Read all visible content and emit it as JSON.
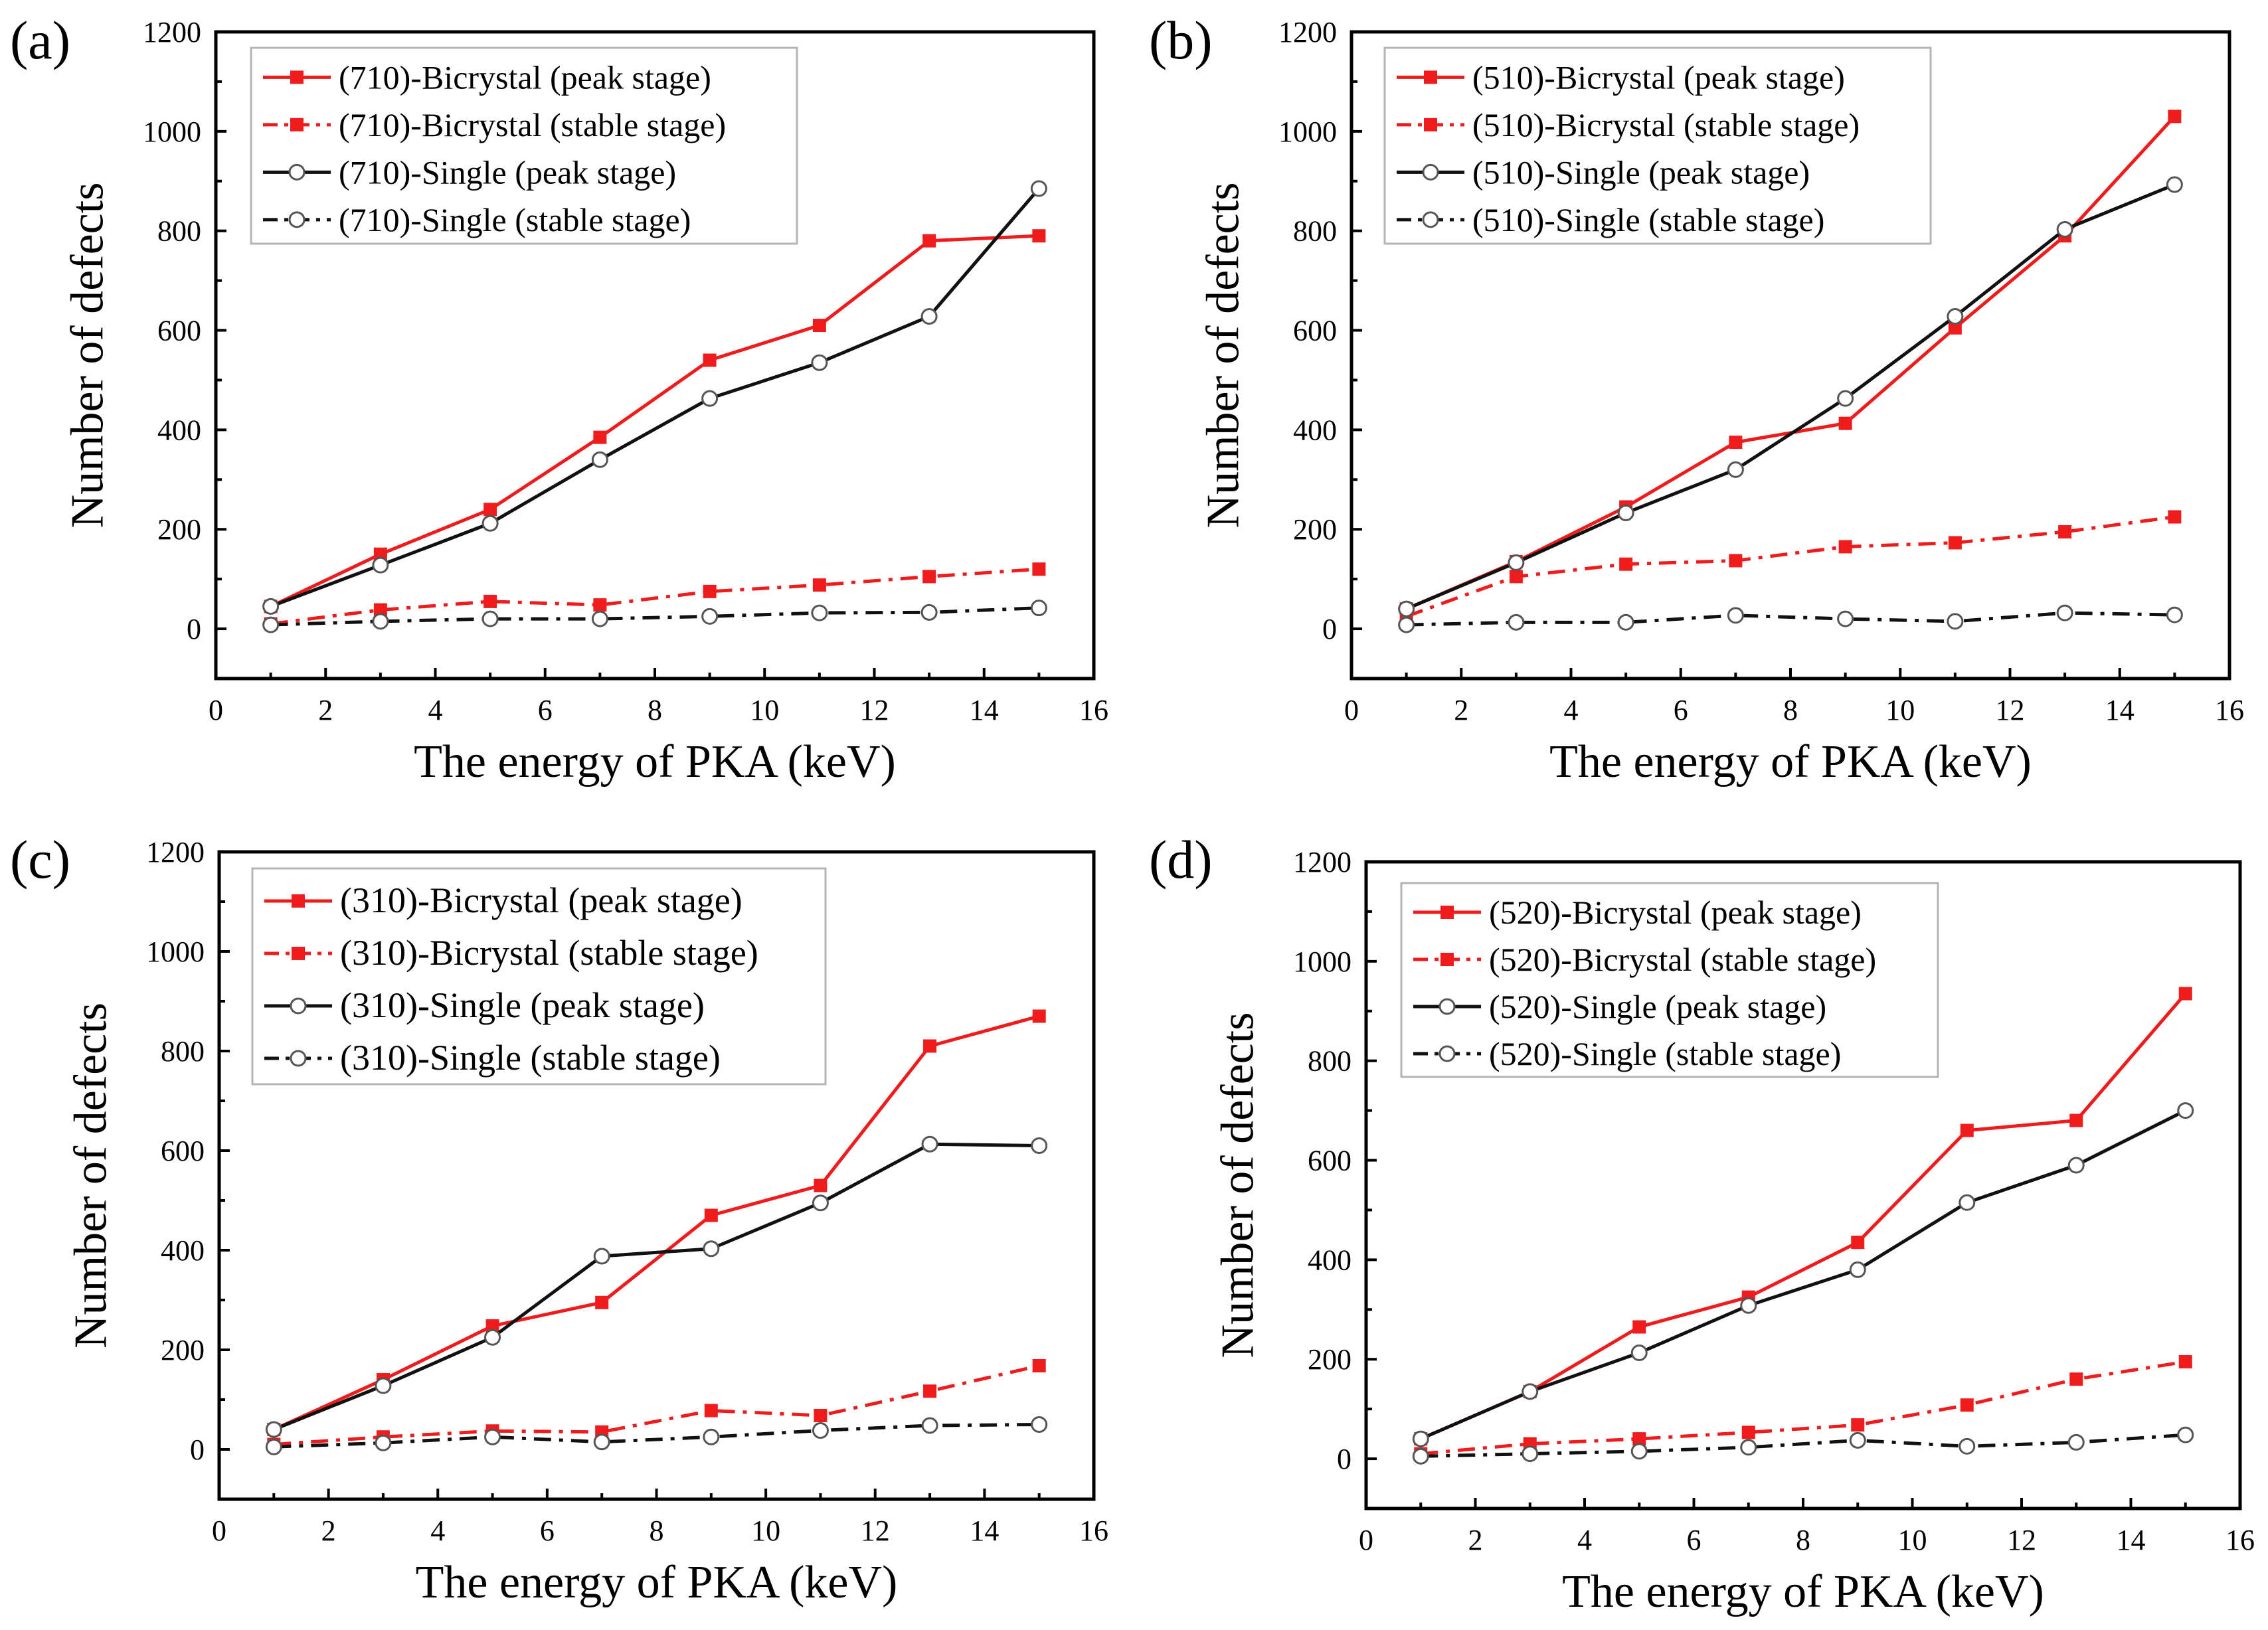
{
  "chart_data": [
    {
      "panel_label": "(a)",
      "type": "line",
      "xlabel": "The energy of PKA (keV)",
      "ylabel": "Number of defects",
      "xlim": [
        0,
        16
      ],
      "ylim": [
        -100,
        1200
      ],
      "xticks": [
        "0",
        "2",
        "4",
        "6",
        "8",
        "10",
        "12",
        "14",
        "16"
      ],
      "yticks": [
        "0",
        "200",
        "400",
        "600",
        "800",
        "1000",
        "1200"
      ],
      "x": [
        1,
        3,
        5,
        7,
        9,
        11,
        13,
        15
      ],
      "legend_position": "top-left",
      "series": [
        {
          "name": "(710)-Bicrystal (peak stage)",
          "color": "#ee1c1c",
          "line": "solid",
          "marker": "square-filled",
          "values": [
            45,
            150,
            240,
            385,
            540,
            610,
            780,
            790
          ]
        },
        {
          "name": "(710)-Bicrystal (stable stage)",
          "color": "#ee1c1c",
          "line": "dashdot",
          "marker": "square-filled",
          "values": [
            10,
            38,
            55,
            48,
            75,
            88,
            105,
            120
          ]
        },
        {
          "name": "(710)-Single (peak stage)",
          "color": "#111111",
          "line": "solid",
          "marker": "circle-open",
          "values": [
            45,
            128,
            212,
            340,
            463,
            535,
            628,
            885
          ]
        },
        {
          "name": "(710)-Single (stable stage)",
          "color": "#111111",
          "line": "dashdot",
          "marker": "circle-open",
          "values": [
            8,
            15,
            20,
            20,
            25,
            32,
            33,
            42
          ]
        }
      ]
    },
    {
      "panel_label": "(b)",
      "type": "line",
      "xlabel": "The energy of PKA (keV)",
      "ylabel": "Number of defects",
      "xlim": [
        0,
        16
      ],
      "ylim": [
        -100,
        1200
      ],
      "xticks": [
        "0",
        "2",
        "4",
        "6",
        "8",
        "10",
        "12",
        "14",
        "16"
      ],
      "yticks": [
        "0",
        "200",
        "400",
        "600",
        "800",
        "1000",
        "1200"
      ],
      "x": [
        1,
        3,
        5,
        7,
        9,
        11,
        13,
        15
      ],
      "legend_position": "top-left",
      "series": [
        {
          "name": "(510)-Bicrystal (peak stage)",
          "color": "#ee1c1c",
          "line": "solid",
          "marker": "square-filled",
          "values": [
            40,
            135,
            245,
            375,
            413,
            605,
            790,
            1030
          ]
        },
        {
          "name": "(510)-Bicrystal (stable stage)",
          "color": "#ee1c1c",
          "line": "dashdot",
          "marker": "square-filled",
          "values": [
            25,
            105,
            130,
            137,
            165,
            173,
            195,
            225
          ]
        },
        {
          "name": "(510)-Single (peak stage)",
          "color": "#111111",
          "line": "solid",
          "marker": "circle-open",
          "values": [
            40,
            133,
            233,
            320,
            463,
            628,
            803,
            893
          ]
        },
        {
          "name": "(510)-Single (stable stage)",
          "color": "#111111",
          "line": "dashdot",
          "marker": "circle-open",
          "values": [
            8,
            13,
            13,
            27,
            20,
            15,
            32,
            28
          ]
        }
      ]
    },
    {
      "panel_label": "(c)",
      "type": "line",
      "xlabel": "The energy of PKA (keV)",
      "ylabel": "Number of defects",
      "xlim": [
        0,
        16
      ],
      "ylim": [
        -100,
        1200
      ],
      "xticks": [
        "0",
        "2",
        "4",
        "6",
        "8",
        "10",
        "12",
        "14",
        "16"
      ],
      "yticks": [
        "0",
        "200",
        "400",
        "600",
        "800",
        "1000",
        "1200"
      ],
      "x": [
        1,
        3,
        5,
        7,
        9,
        11,
        13,
        15
      ],
      "legend_position": "top-left",
      "series": [
        {
          "name": "(310)-Bicrystal (peak stage)",
          "color": "#ee1c1c",
          "line": "solid",
          "marker": "square-filled",
          "values": [
            40,
            140,
            248,
            295,
            470,
            530,
            810,
            870
          ]
        },
        {
          "name": "(310)-Bicrystal (stable stage)",
          "color": "#ee1c1c",
          "line": "dashdot",
          "marker": "square-filled",
          "values": [
            10,
            25,
            37,
            35,
            78,
            68,
            117,
            168
          ]
        },
        {
          "name": "(310)-Single (peak stage)",
          "color": "#111111",
          "line": "solid",
          "marker": "circle-open",
          "values": [
            40,
            128,
            225,
            388,
            403,
            495,
            613,
            610
          ]
        },
        {
          "name": "(310)-Single (stable stage)",
          "color": "#111111",
          "line": "dashdot",
          "marker": "circle-open",
          "values": [
            5,
            13,
            25,
            15,
            25,
            38,
            48,
            50
          ]
        }
      ]
    },
    {
      "panel_label": "(d)",
      "type": "line",
      "xlabel": "The energy of PKA (keV)",
      "ylabel": "Number of defects",
      "xlim": [
        0,
        16
      ],
      "ylim": [
        -100,
        1200
      ],
      "xticks": [
        "0",
        "2",
        "4",
        "6",
        "8",
        "10",
        "12",
        "14",
        "16"
      ],
      "yticks": [
        "0",
        "200",
        "400",
        "600",
        "800",
        "1000",
        "1200"
      ],
      "x": [
        1,
        3,
        5,
        7,
        9,
        11,
        13,
        15
      ],
      "legend_position": "top-left",
      "series": [
        {
          "name": "(520)-Bicrystal (peak stage)",
          "color": "#ee1c1c",
          "line": "solid",
          "marker": "square-filled",
          "values": [
            40,
            135,
            265,
            325,
            435,
            660,
            680,
            935
          ]
        },
        {
          "name": "(520)-Bicrystal (stable stage)",
          "color": "#ee1c1c",
          "line": "dashdot",
          "marker": "square-filled",
          "values": [
            10,
            30,
            40,
            53,
            68,
            108,
            160,
            195
          ]
        },
        {
          "name": "(520)-Single (peak stage)",
          "color": "#111111",
          "line": "solid",
          "marker": "circle-open",
          "values": [
            40,
            135,
            213,
            308,
            380,
            515,
            590,
            700
          ]
        },
        {
          "name": "(520)-Single (stable stage)",
          "color": "#111111",
          "line": "dashdot",
          "marker": "circle-open",
          "values": [
            5,
            10,
            15,
            23,
            37,
            25,
            33,
            48
          ]
        }
      ]
    }
  ]
}
